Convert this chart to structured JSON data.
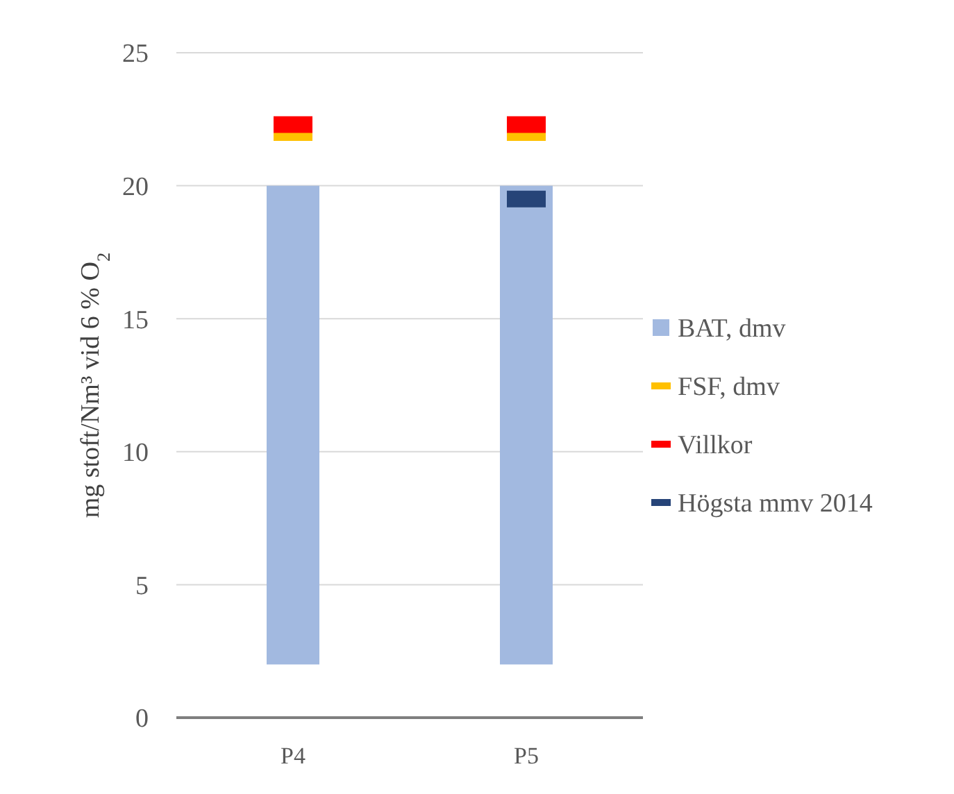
{
  "chart_data": {
    "type": "bar",
    "ylabel": "mg stoft/Nm³ vid 6 % O$_{2}$",
    "categories": [
      "P4",
      "P5"
    ],
    "series": [
      {
        "name": "BAT, dmv",
        "color": "#a2b9e0",
        "values": [
          18,
          18
        ],
        "base": [
          2,
          2
        ]
      },
      {
        "name": "FSF, dmv",
        "type": "scatter",
        "color": "#ffc000",
        "x": [
          "P4",
          "P5"
        ],
        "values": [
          22,
          22
        ]
      },
      {
        "name": "Villkor",
        "type": "scatter",
        "color": "#ff0000",
        "x": [
          "P4",
          "P5"
        ],
        "values": [
          22.3,
          22.3
        ]
      },
      {
        "name": "Högsta mmv 2014",
        "type": "scatter",
        "color": "#264478",
        "x": [
          "P5"
        ],
        "values": [
          19.5
        ]
      }
    ],
    "ylim": [
      0,
      25
    ],
    "yticks": [
      0,
      5,
      10,
      15,
      20,
      25
    ],
    "grid": "y",
    "legend": "right"
  }
}
